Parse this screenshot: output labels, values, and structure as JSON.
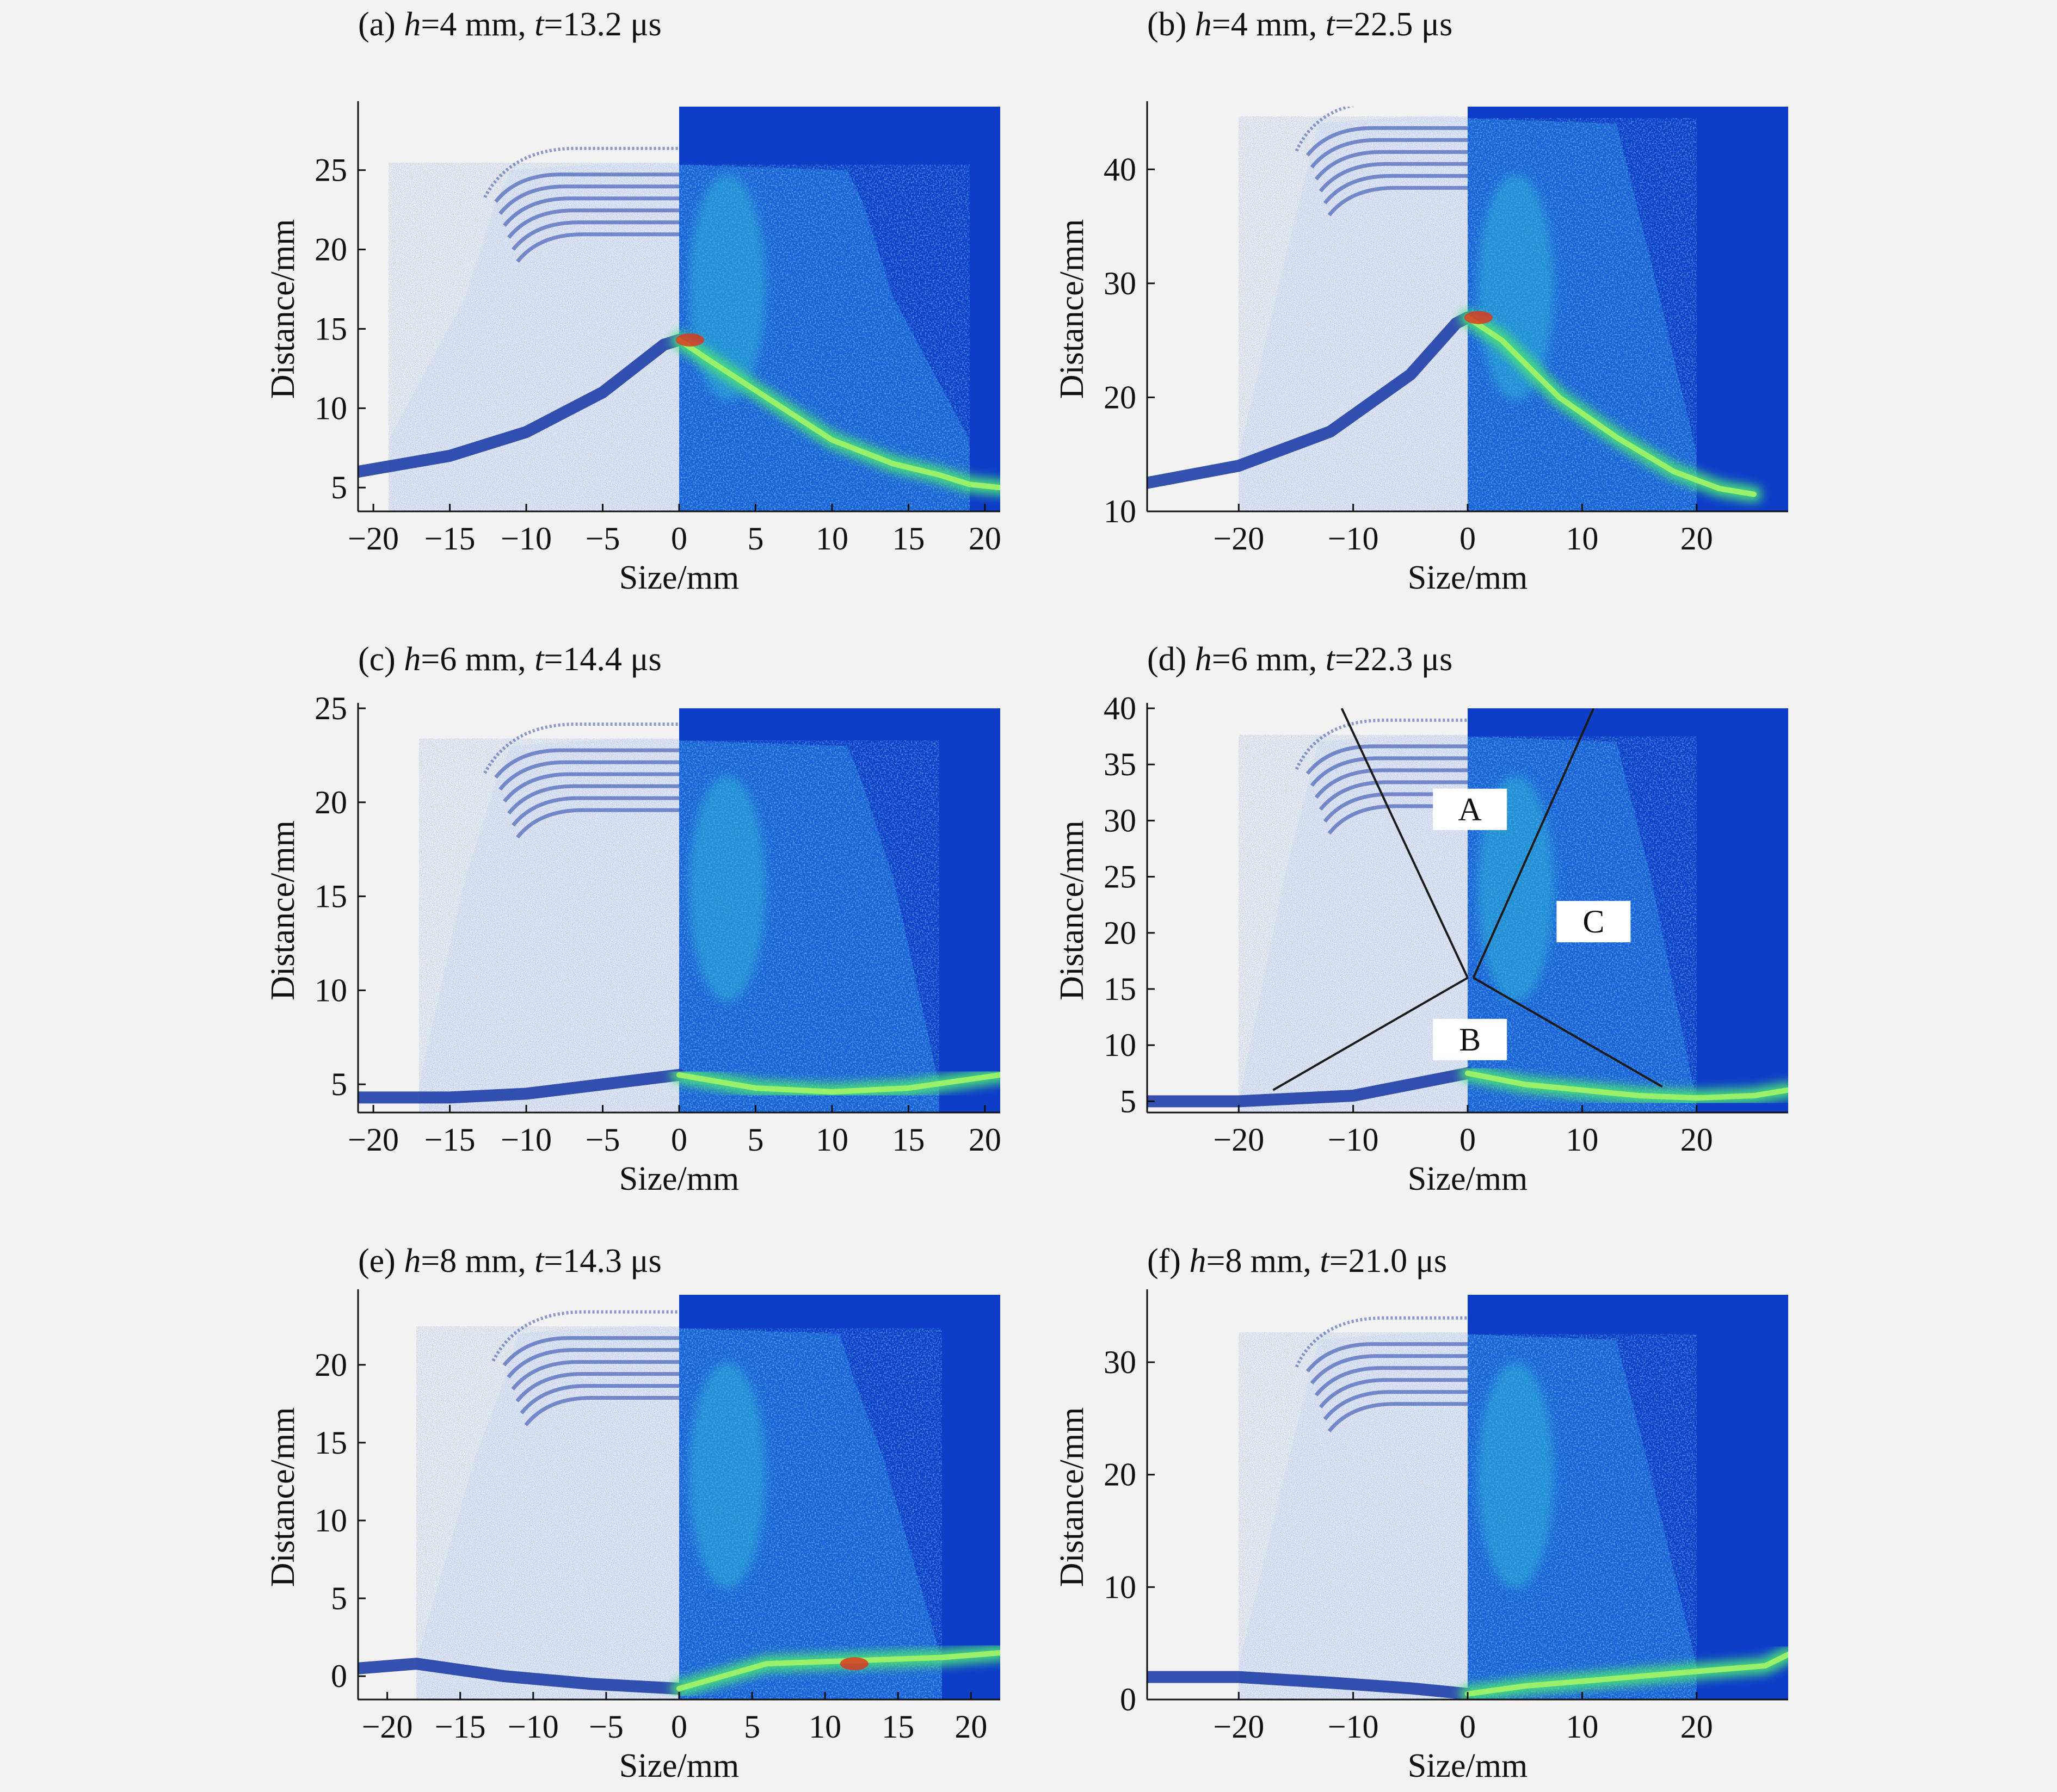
{
  "figure": {
    "panels": [
      {
        "id": "a",
        "title": {
          "prefix": "(a) ",
          "v1": "h",
          "mid": "=4 mm, ",
          "v2": "t",
          "suffix": "=13.2 μs"
        },
        "xlabel": "Size/mm",
        "ylabel": "Distance/mm",
        "xlim": [
          -21,
          21
        ],
        "ylim": [
          3.5,
          29
        ],
        "xticks": [
          -20,
          -15,
          -10,
          -5,
          0,
          5,
          10,
          15,
          20
        ],
        "yticks": [
          5,
          10,
          15,
          20,
          25
        ],
        "front_profile": {
          "x": [
            -21,
            -15,
            -10,
            -5,
            -1,
            0,
            2,
            6,
            10,
            14,
            17,
            19,
            21
          ],
          "y": [
            6,
            7,
            8.5,
            11,
            14,
            14.3,
            13,
            10.5,
            8,
            6.5,
            5.8,
            5.2,
            5
          ]
        },
        "jet_edge": {
          "x": [
            -19,
            -14,
            -12,
            -11
          ],
          "y": [
            8,
            17,
            23,
            25
          ]
        },
        "regions": []
      },
      {
        "id": "b",
        "title": {
          "prefix": "(b) ",
          "v1": "h",
          "mid": "=4 mm, ",
          "v2": "t",
          "suffix": "=22.5 μs"
        },
        "xlabel": "Size/mm",
        "ylabel": "Distance/mm",
        "xlim": [
          -28,
          28
        ],
        "ylim": [
          10,
          45.5
        ],
        "xticks": [
          -20,
          -10,
          0,
          10,
          20
        ],
        "yticks": [
          10,
          20,
          30,
          40
        ],
        "front_profile": {
          "x": [
            -28,
            -20,
            -12,
            -5,
            -1,
            0,
            3,
            8,
            13,
            18,
            22,
            25
          ],
          "y": [
            12.5,
            14,
            17,
            22,
            26.5,
            27,
            25,
            20,
            16.5,
            13.5,
            12,
            11.5
          ]
        },
        "jet_edge": {
          "x": [
            -20,
            -16,
            -14,
            -13
          ],
          "y": [
            15,
            32,
            40,
            44
          ]
        },
        "regions": []
      },
      {
        "id": "c",
        "title": {
          "prefix": "(c) ",
          "v1": "h",
          "mid": "=6 mm, ",
          "v2": "t",
          "suffix": "=14.4 μs"
        },
        "xlabel": "Size/mm",
        "ylabel": "Distance/mm",
        "xlim": [
          -21,
          21
        ],
        "ylim": [
          3.5,
          25
        ],
        "xticks": [
          -20,
          -15,
          -10,
          -5,
          0,
          5,
          10,
          15,
          20
        ],
        "yticks": [
          5,
          10,
          15,
          20,
          25
        ],
        "front_profile": {
          "x": [
            -21,
            -15,
            -10,
            -5,
            0,
            5,
            10,
            15,
            21
          ],
          "y": [
            4.3,
            4.3,
            4.5,
            5,
            5.5,
            4.8,
            4.6,
            4.8,
            5.5
          ]
        },
        "jet_edge": {
          "x": [
            -17,
            -14,
            -12,
            -11
          ],
          "y": [
            5,
            16,
            21,
            23
          ]
        },
        "regions": []
      },
      {
        "id": "d",
        "title": {
          "prefix": "(d) ",
          "v1": "h",
          "mid": "=6 mm, ",
          "v2": "t",
          "suffix": "=22.3 μs"
        },
        "xlabel": "Size/mm",
        "ylabel": "Distance/mm",
        "xlim": [
          -28,
          28
        ],
        "ylim": [
          4,
          40
        ],
        "xticks": [
          -20,
          -10,
          0,
          10,
          20
        ],
        "yticks": [
          5,
          10,
          15,
          20,
          25,
          30,
          35,
          40
        ],
        "front_profile": {
          "x": [
            -28,
            -20,
            -10,
            -5,
            0,
            5,
            10,
            15,
            20,
            25,
            28
          ],
          "y": [
            5,
            5,
            5.5,
            6.5,
            7.5,
            6.5,
            6,
            5.5,
            5.3,
            5.5,
            6
          ]
        },
        "jet_edge": {
          "x": [
            -20,
            -16,
            -14,
            -13
          ],
          "y": [
            5,
            25,
            33,
            37
          ]
        },
        "divider_lines": [
          {
            "x": [
              -11,
              0
            ],
            "y": [
              40,
              16
            ]
          },
          {
            "x": [
              11,
              0.5
            ],
            "y": [
              40,
              16
            ]
          },
          {
            "x": [
              -17,
              0
            ],
            "y": [
              6,
              16
            ]
          },
          {
            "x": [
              17,
              0.5
            ],
            "y": [
              6.3,
              16
            ]
          }
        ],
        "regions": [
          {
            "label": "A",
            "x": 0.2,
            "y": 31
          },
          {
            "label": "C",
            "x": 11,
            "y": 21
          },
          {
            "label": "B",
            "x": 0.2,
            "y": 10.5
          }
        ]
      },
      {
        "id": "e",
        "title": {
          "prefix": "(e) ",
          "v1": "h",
          "mid": "=8 mm, ",
          "v2": "t",
          "suffix": "=14.3 μs"
        },
        "xlabel": "Size/mm",
        "ylabel": "Distance/mm",
        "xlim": [
          -22,
          22
        ],
        "ylim": [
          -1.5,
          24.5
        ],
        "xticks": [
          -20,
          -15,
          -10,
          -5,
          0,
          5,
          10,
          15,
          20
        ],
        "yticks": [
          0,
          5,
          10,
          15,
          20
        ],
        "front_profile": {
          "x": [
            -22,
            -18,
            -12,
            -6,
            0,
            6,
            12,
            18,
            22
          ],
          "y": [
            0.5,
            0.8,
            0,
            -0.5,
            -0.8,
            0.8,
            1,
            1.2,
            1.5
          ]
        },
        "jet_edge": {
          "x": [
            -18,
            -14,
            -12,
            -11
          ],
          "y": [
            1,
            14,
            19,
            22
          ]
        },
        "regions": []
      },
      {
        "id": "f",
        "title": {
          "prefix": "(f) ",
          "v1": "h",
          "mid": "=8 mm, ",
          "v2": "t",
          "suffix": "=21.0 μs"
        },
        "xlabel": "Size/mm",
        "ylabel": "Distance/mm",
        "xlim": [
          -28,
          28
        ],
        "ylim": [
          0,
          36
        ],
        "xticks": [
          -20,
          -10,
          0,
          10,
          20
        ],
        "yticks": [
          0,
          10,
          20,
          30
        ],
        "front_profile": {
          "x": [
            -28,
            -20,
            -12,
            -5,
            0,
            5,
            12,
            20,
            26,
            28
          ],
          "y": [
            2,
            2,
            1.5,
            1,
            0.5,
            1.2,
            1.8,
            2.5,
            3,
            4
          ]
        },
        "jet_edge": {
          "x": [
            -20,
            -16,
            -14,
            -13
          ],
          "y": [
            3,
            20,
            28,
            32
          ]
        },
        "regions": []
      }
    ]
  },
  "colors": {
    "background": "#f2f2f2",
    "pressure_bg": "#0e3dc8",
    "pressure_mid": "#2fb4d8",
    "pressure_high": "#48e07a",
    "pressure_peak": "#d83a1e",
    "shadowgraph_ink": "#1f3fa8",
    "shadowgraph_bg": "#e9ecf6"
  }
}
